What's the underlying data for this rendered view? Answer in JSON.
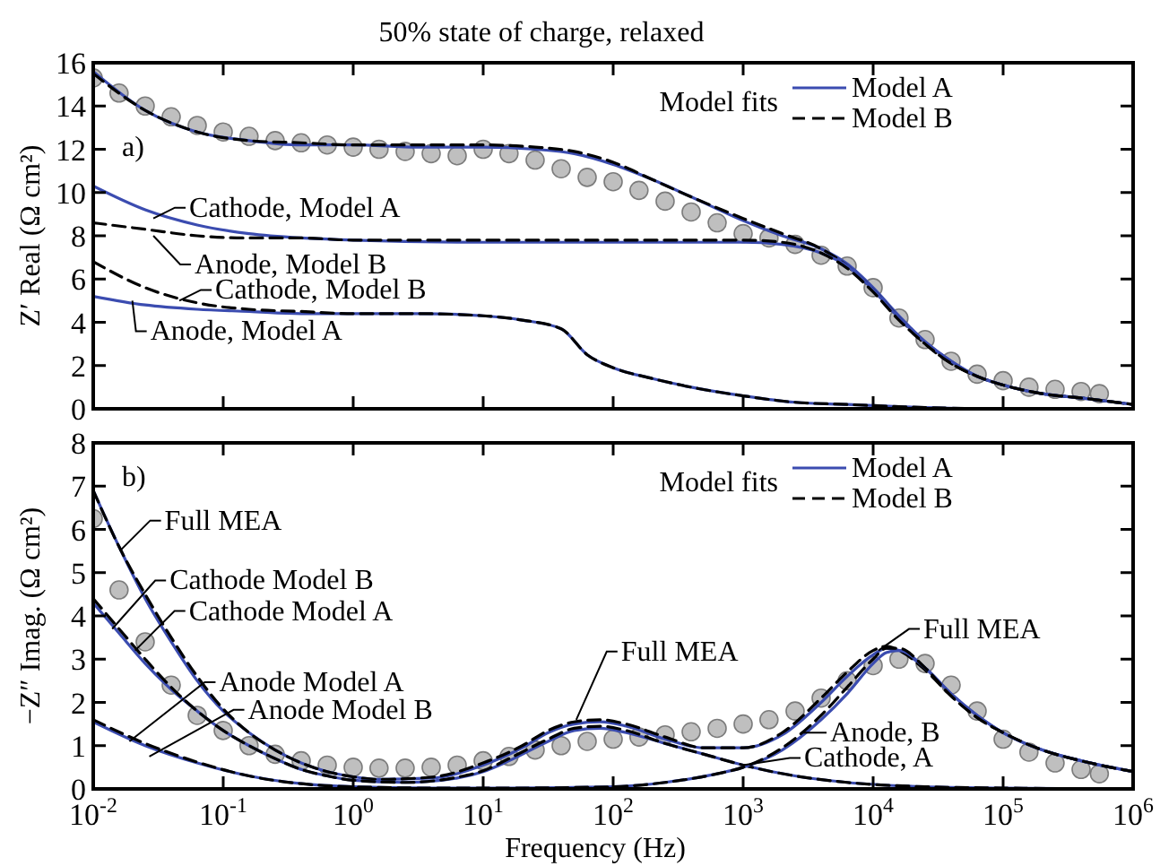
{
  "chart_data": [
    {
      "type": "line",
      "title": "50% state of charge, relaxed",
      "ylabel": "Z′ Real (Ω cm²)",
      "legend_title": "Model fits",
      "legend": "top right",
      "log": "x",
      "tick_labels": "y",
      "xlim": [
        0.01,
        1000000
      ],
      "ylim": [
        0,
        16
      ],
      "xticks": [
        {
          "value": 0.01,
          "label": null
        },
        {
          "value": 0.1,
          "label": null
        },
        {
          "value": 1,
          "label": null
        },
        {
          "value": 10,
          "label": null
        },
        {
          "value": 100,
          "label": null
        },
        {
          "value": 1000,
          "label": null
        },
        {
          "value": 10000,
          "label": null
        },
        {
          "value": 100000,
          "label": null
        },
        {
          "value": 1000000,
          "label": null
        }
      ],
      "yticks": [
        0,
        2,
        4,
        6,
        8,
        10,
        12,
        14,
        16
      ],
      "annotations": [
        "a)",
        {
          "text": "Cathode, Model A",
          "x": 0.029,
          "y": 8.8
        },
        {
          "text": "Anode, Model B",
          "x": 0.029,
          "y": 8.0
        },
        {
          "text": "Cathode, Model B",
          "x": 0.046,
          "y": 5.0
        },
        {
          "text": "Anode, Model A",
          "x": 0.02,
          "y": 5.0
        }
      ],
      "series": [
        {
          "type": "scatter",
          "marker": "circle",
          "color": "#bfbfbf",
          "x": [
            0.01,
            0.0158,
            0.0251,
            0.0398,
            0.0631,
            0.1,
            0.158,
            0.251,
            0.398,
            0.631,
            1,
            1.58,
            2.51,
            3.98,
            6.31,
            10,
            15.8,
            25.1,
            39.8,
            63.1,
            100,
            158,
            251,
            398,
            631,
            1000,
            1580,
            2510,
            3980,
            6310,
            10000,
            15800,
            25100,
            39800,
            63100,
            100000,
            158000,
            251000,
            398000,
            550000
          ],
          "values": [
            15.3,
            14.6,
            14.0,
            13.5,
            13.1,
            12.8,
            12.6,
            12.4,
            12.3,
            12.2,
            12.1,
            12.0,
            11.9,
            11.8,
            11.7,
            12.0,
            11.8,
            11.5,
            11.1,
            10.7,
            10.5,
            10.1,
            9.6,
            9.1,
            8.6,
            8.1,
            7.9,
            7.6,
            7.1,
            6.6,
            5.6,
            4.2,
            3.2,
            2.2,
            1.6,
            1.3,
            1.0,
            0.9,
            0.8,
            0.7
          ]
        },
        {
          "name": "Model A",
          "color": "#3b4cb0",
          "line_style": "solid",
          "x": [
            0.01,
            0.0251,
            0.0631,
            0.158,
            0.398,
            1,
            3.16,
            10,
            25.1,
            50.1,
            100,
            200,
            398,
            1000,
            2000,
            3980,
            6310,
            10000,
            15800,
            25100,
            39800,
            63100,
            100000,
            200000,
            398000,
            1000000
          ],
          "values": [
            15.6,
            13.8,
            12.8,
            12.4,
            12.2,
            12.2,
            12.1,
            12.1,
            12.0,
            11.8,
            11.3,
            10.6,
            9.8,
            8.7,
            8.0,
            7.4,
            6.7,
            5.6,
            4.3,
            3.1,
            2.2,
            1.5,
            1.1,
            0.7,
            0.5,
            0.2
          ]
        },
        {
          "name": "Model B",
          "color": "#000000",
          "line_style": "dashed",
          "x": [
            0.01,
            0.0251,
            0.0631,
            0.158,
            0.398,
            1,
            3.16,
            10,
            25.1,
            50.1,
            100,
            200,
            398,
            1000,
            2000,
            3980,
            6310,
            10000,
            15800,
            25100,
            39800,
            63100,
            100000,
            200000,
            398000,
            1000000
          ],
          "values": [
            15.5,
            13.8,
            12.8,
            12.4,
            12.3,
            12.2,
            12.2,
            12.2,
            12.1,
            11.9,
            11.4,
            10.6,
            9.8,
            8.8,
            8.1,
            7.4,
            6.6,
            5.5,
            4.2,
            3.0,
            2.1,
            1.5,
            1.1,
            0.7,
            0.5,
            0.2
          ]
        },
        {
          "color": "#3b4cb0",
          "line_style": "solid",
          "x": [
            0.01,
            0.0251,
            0.0631,
            0.158,
            0.398,
            1,
            10,
            100,
            1000,
            2000,
            3980,
            6310,
            10000,
            15800,
            25100,
            39800,
            63100,
            100000,
            200000,
            398000,
            1000000
          ],
          "values": [
            10.3,
            9.2,
            8.5,
            8.1,
            7.9,
            7.8,
            7.7,
            7.7,
            7.7,
            7.6,
            7.2,
            6.6,
            5.5,
            4.2,
            3.1,
            2.2,
            1.5,
            1.1,
            0.7,
            0.5,
            0.2
          ]
        },
        {
          "color": "#000000",
          "line_style": "dashed",
          "x": [
            0.01,
            0.0251,
            0.0631,
            0.158,
            0.398,
            1,
            10,
            100,
            1000,
            2000,
            3980,
            6310,
            10000,
            15800,
            25100,
            39800,
            63100,
            100000,
            200000,
            398000,
            1000000
          ],
          "values": [
            8.6,
            8.3,
            8.0,
            7.9,
            7.9,
            7.8,
            7.8,
            7.8,
            7.8,
            7.7,
            7.2,
            6.5,
            5.4,
            4.1,
            3.0,
            2.1,
            1.5,
            1.1,
            0.7,
            0.5,
            0.2
          ]
        },
        {
          "color": "#3b4cb0",
          "line_style": "solid",
          "x": [
            0.01,
            0.0251,
            0.0631,
            0.158,
            0.398,
            1,
            3.16,
            10,
            20,
            39.8,
            63.1,
            100,
            200,
            398,
            1000,
            2510,
            6310,
            15800,
            100000,
            1000000
          ],
          "values": [
            5.2,
            4.8,
            4.6,
            4.5,
            4.4,
            4.4,
            4.4,
            4.3,
            4.1,
            3.7,
            2.5,
            1.9,
            1.4,
            1.0,
            0.6,
            0.3,
            0.2,
            0.1,
            0,
            0
          ]
        },
        {
          "color": "#000000",
          "line_style": "dashed",
          "x": [
            0.01,
            0.0251,
            0.0631,
            0.158,
            0.398,
            1,
            3.16,
            10,
            20,
            39.8,
            63.1,
            100,
            200,
            398,
            1000,
            2510,
            6310,
            15800,
            100000,
            1000000
          ],
          "values": [
            6.8,
            5.6,
            4.9,
            4.6,
            4.5,
            4.4,
            4.4,
            4.3,
            4.1,
            3.7,
            2.5,
            1.9,
            1.4,
            1.0,
            0.6,
            0.3,
            0.2,
            0.1,
            0,
            0
          ]
        }
      ]
    },
    {
      "type": "line",
      "ylabel": "−Z″ Imag. (Ω cm²)",
      "xlabel": "Frequency (Hz)",
      "legend_title": "Model fits",
      "legend": "top right",
      "log": "x",
      "xlim": [
        0.01,
        1000000
      ],
      "ylim": [
        0,
        8
      ],
      "xticks": [
        {
          "value": 0.01,
          "label": "10$^{-2}$"
        },
        {
          "value": 0.1,
          "label": "10$^{-1}$"
        },
        {
          "value": 1,
          "label": "10$^{0}$"
        },
        {
          "value": 10,
          "label": "10$^{1}$"
        },
        {
          "value": 100,
          "label": "10$^{2}$"
        },
        {
          "value": 1000,
          "label": "10$^{3}$"
        },
        {
          "value": 10000,
          "label": "10$^{4}$"
        },
        {
          "value": 100000,
          "label": "10$^{5}$"
        },
        {
          "value": 1000000,
          "label": "10$^{6}$"
        }
      ],
      "yticks": [
        0,
        1,
        2,
        3,
        4,
        5,
        6,
        7,
        8
      ],
      "annotations": [
        "b)",
        {
          "text": "Full MEA",
          "x": 0.016,
          "y": 5.5
        },
        {
          "text": "Cathode Model B",
          "x": 0.014,
          "y": 3.7
        },
        {
          "text": "Cathode Model A",
          "x": 0.021,
          "y": 3.2
        },
        {
          "text": "Anode Model A",
          "x": 0.019,
          "y": 1.1
        },
        {
          "text": "Anode Model B",
          "x": 0.027,
          "y": 0.75
        },
        {
          "text": "Full MEA",
          "x": 52,
          "y": 1.6
        },
        {
          "text": "Full MEA",
          "x": 11000,
          "y": 3.2
        },
        {
          "text": "Anode, B",
          "x": 2900,
          "y": 1.3
        },
        {
          "text": "Cathode, A",
          "x": 1000,
          "y": 0.55
        }
      ],
      "series": [
        {
          "type": "scatter",
          "marker": "circle",
          "color": "#bfbfbf",
          "x": [
            0.01,
            0.0158,
            0.0251,
            0.0398,
            0.0631,
            0.1,
            0.158,
            0.251,
            0.398,
            0.631,
            1,
            1.58,
            2.51,
            3.98,
            6.31,
            10,
            15.8,
            25.1,
            39.8,
            63.1,
            100,
            158,
            251,
            398,
            631,
            1000,
            1580,
            2510,
            3980,
            6310,
            10000,
            15800,
            25100,
            39800,
            63100,
            100000,
            158000,
            251000,
            398000,
            550000
          ],
          "values": [
            6.25,
            4.6,
            3.4,
            2.4,
            1.7,
            1.35,
            1.0,
            0.8,
            0.65,
            0.55,
            0.5,
            0.48,
            0.48,
            0.5,
            0.55,
            0.65,
            0.75,
            0.9,
            1.0,
            1.1,
            1.15,
            1.2,
            1.25,
            1.32,
            1.4,
            1.5,
            1.6,
            1.8,
            2.1,
            2.5,
            2.85,
            3.0,
            2.9,
            2.4,
            1.8,
            1.15,
            0.85,
            0.6,
            0.45,
            0.35
          ]
        },
        {
          "name": "Model A",
          "color": "#3b4cb0",
          "line_style": "solid",
          "x": [
            0.01,
            0.0158,
            0.0251,
            0.0398,
            0.0631,
            0.1,
            0.158,
            0.251,
            0.398,
            0.631,
            1,
            1.58,
            3.98,
            10,
            20,
            31.6,
            50.1,
            79.4,
            126,
            251,
            501,
            1000,
            2000,
            3980,
            6310,
            10000,
            12600,
            15800,
            25100,
            39800,
            63100,
            100000,
            200000,
            398000,
            1000000
          ],
          "values": [
            6.9,
            5.6,
            4.4,
            3.4,
            2.5,
            1.8,
            1.3,
            0.9,
            0.6,
            0.4,
            0.28,
            0.22,
            0.25,
            0.55,
            0.95,
            1.3,
            1.5,
            1.55,
            1.45,
            1.15,
            0.95,
            0.95,
            1.25,
            2.0,
            2.6,
            3.1,
            3.25,
            3.2,
            2.8,
            2.2,
            1.7,
            1.3,
            0.9,
            0.65,
            0.4
          ]
        },
        {
          "name": "Model B",
          "color": "#000000",
          "line_style": "dashed",
          "x": [
            0.01,
            0.0158,
            0.0251,
            0.0398,
            0.0631,
            0.1,
            0.158,
            0.251,
            0.398,
            0.631,
            1,
            1.58,
            3.98,
            10,
            20,
            31.6,
            50.1,
            79.4,
            126,
            251,
            501,
            1000,
            2000,
            3980,
            6310,
            10000,
            12600,
            15800,
            25100,
            39800,
            63100,
            100000,
            200000,
            398000,
            1000000
          ],
          "values": [
            6.9,
            5.6,
            4.5,
            3.5,
            2.6,
            1.85,
            1.3,
            0.9,
            0.6,
            0.4,
            0.28,
            0.22,
            0.27,
            0.6,
            1.0,
            1.35,
            1.55,
            1.6,
            1.5,
            1.2,
            0.95,
            0.95,
            1.3,
            2.1,
            2.7,
            3.2,
            3.3,
            3.2,
            2.75,
            2.15,
            1.65,
            1.3,
            0.9,
            0.65,
            0.4
          ]
        },
        {
          "color": "#3b4cb0",
          "line_style": "solid",
          "x": [
            0.01,
            0.0158,
            0.0251,
            0.0398,
            0.0631,
            0.1,
            0.158,
            0.251,
            0.398,
            0.631,
            1,
            2.51,
            6.31,
            10,
            15.8,
            31.6,
            50.1,
            79.4,
            126,
            251,
            501,
            1000,
            2510,
            6310,
            25100,
            100000,
            1000000
          ],
          "values": [
            4.3,
            3.6,
            2.9,
            2.3,
            1.8,
            1.35,
            1.0,
            0.7,
            0.45,
            0.3,
            0.2,
            0.15,
            0.25,
            0.4,
            0.65,
            1.1,
            1.35,
            1.4,
            1.3,
            1.05,
            0.8,
            0.55,
            0.3,
            0.15,
            0.05,
            0.02,
            0
          ]
        },
        {
          "color": "#000000",
          "line_style": "dashed",
          "x": [
            0.01,
            0.0158,
            0.0251,
            0.0398,
            0.0631,
            0.1,
            0.158,
            0.251,
            0.398,
            0.631,
            1,
            2.51,
            6.31,
            10,
            15.8,
            31.6,
            50.1,
            79.4,
            126,
            251,
            501,
            1000,
            2510,
            6310,
            25100,
            100000,
            1000000
          ],
          "values": [
            4.4,
            3.7,
            3.0,
            2.35,
            1.8,
            1.35,
            1.0,
            0.7,
            0.45,
            0.3,
            0.2,
            0.15,
            0.27,
            0.42,
            0.7,
            1.15,
            1.4,
            1.45,
            1.35,
            1.05,
            0.8,
            0.55,
            0.3,
            0.15,
            0.05,
            0.02,
            0
          ]
        },
        {
          "color": "#3b4cb0",
          "line_style": "solid",
          "x": [
            0.01,
            0.0251,
            0.0631,
            0.158,
            0.398,
            1,
            3.98,
            15.8,
            100,
            251,
            631,
            1000,
            2000,
            3980,
            6310,
            10000,
            12600,
            15800,
            25100,
            39800,
            63100,
            100000,
            200000,
            398000,
            1000000
          ],
          "values": [
            1.55,
            1.0,
            0.6,
            0.3,
            0.12,
            0.05,
            0.02,
            0.02,
            0.05,
            0.15,
            0.35,
            0.5,
            0.9,
            1.6,
            2.2,
            2.9,
            3.15,
            3.2,
            2.8,
            2.2,
            1.7,
            1.3,
            0.9,
            0.65,
            0.4
          ]
        },
        {
          "color": "#000000",
          "line_style": "dashed",
          "x": [
            0.01,
            0.0251,
            0.0631,
            0.158,
            0.398,
            1,
            3.98,
            15.8,
            100,
            251,
            631,
            1000,
            2000,
            3980,
            6310,
            10000,
            12600,
            15800,
            25100,
            39800,
            63100,
            100000,
            200000,
            398000,
            1000000
          ],
          "values": [
            1.6,
            1.05,
            0.62,
            0.3,
            0.12,
            0.05,
            0.02,
            0.02,
            0.05,
            0.15,
            0.35,
            0.5,
            0.95,
            1.7,
            2.35,
            3.0,
            3.25,
            3.25,
            2.8,
            2.15,
            1.65,
            1.3,
            0.9,
            0.65,
            0.4
          ]
        }
      ]
    }
  ]
}
